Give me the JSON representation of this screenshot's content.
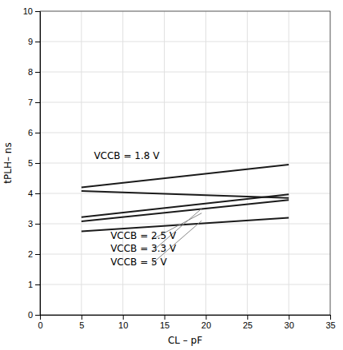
{
  "chart_data": {
    "type": "line",
    "x_label": "CL – pF",
    "y_label": "tPLH– ns",
    "xlim": [
      0,
      35
    ],
    "ylim": [
      0,
      10
    ],
    "xticks": [
      0,
      5,
      10,
      15,
      20,
      25,
      30,
      35
    ],
    "yticks": [
      0,
      1,
      2,
      3,
      4,
      5,
      6,
      7,
      8,
      9,
      10
    ],
    "grid": true,
    "series": [
      {
        "x": [
          5,
          30
        ],
        "values": [
          4.2,
          4.95
        ],
        "color": "#1a1a1a"
      },
      {
        "x": [
          5,
          30
        ],
        "values": [
          4.08,
          3.85
        ],
        "color": "#1a1a1a"
      },
      {
        "x": [
          5,
          30
        ],
        "values": [
          3.22,
          3.97
        ],
        "color": "#1a1a1a"
      },
      {
        "x": [
          5,
          30
        ],
        "values": [
          3.08,
          3.78
        ],
        "color": "#1a1a1a"
      },
      {
        "x": [
          5,
          30
        ],
        "values": [
          2.75,
          3.2
        ],
        "color": "#1a1a1a"
      },
      {
        "x": [
          13.5,
          19.5
        ],
        "values": [
          2.48,
          3.35
        ],
        "color": "#888888"
      },
      {
        "x": [
          13.5,
          19.5
        ],
        "values": [
          2.08,
          3.5
        ],
        "color": "#888888"
      },
      {
        "x": [
          13.5,
          19.5
        ],
        "values": [
          1.68,
          3.1
        ],
        "color": "#888888"
      }
    ],
    "annotations": [
      {
        "text": "VCCB = 1.8 V",
        "x": 6.5,
        "y": 5.08
      },
      {
        "text": "VCCB = 2.5 V",
        "x": 8.5,
        "y": 2.45
      },
      {
        "text": "VCCB = 3.3 V",
        "x": 8.5,
        "y": 2.02
      },
      {
        "text": "VCCB = 5 V",
        "x": 8.5,
        "y": 1.57
      }
    ]
  }
}
